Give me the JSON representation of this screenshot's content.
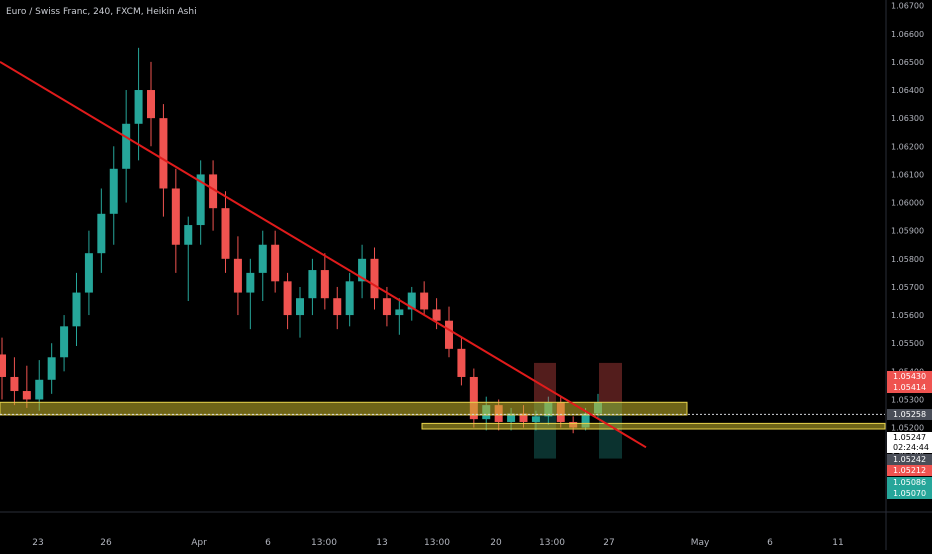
{
  "header": {
    "title": "Euro / Swiss Franc, 240, FXCM, Heikin Ashi"
  },
  "colors": {
    "background": "#000000",
    "up_candle": "#26a69a",
    "down_candle": "#ef5350",
    "trendline": "#e01b1b",
    "zone_fill": "#c8b72b",
    "zone_border": "#e8d44d",
    "axis_text": "#b2b5be"
  },
  "chart_data": {
    "type": "candlestick",
    "title": "Euro / Swiss Franc, 240, FXCM, Heikin Ashi",
    "yaxis": {
      "ticks": [
        "1.06700",
        "1.06600",
        "1.06500",
        "1.06400",
        "1.06300",
        "1.06200",
        "1.06100",
        "1.06000",
        "1.05900",
        "1.05800",
        "1.05700",
        "1.05600",
        "1.05500",
        "1.05400",
        "1.05300",
        "1.05200",
        "1.05100",
        "1.05000"
      ],
      "range": [
        1.049,
        1.0672
      ]
    },
    "xaxis": {
      "ticks": [
        "23",
        "26",
        "Apr",
        "6",
        "13:00",
        "13",
        "13:00",
        "20",
        "13:00",
        "27",
        "May",
        "6",
        "11"
      ]
    },
    "price_labels": [
      {
        "text": "1.05430",
        "kind": "red"
      },
      {
        "text": "1.05414",
        "kind": "red"
      },
      {
        "text": "1.05258",
        "kind": "gray"
      },
      {
        "text": "1.05247",
        "kind": "last"
      },
      {
        "text": "02:24:44",
        "kind": "last"
      },
      {
        "text": "1.05242",
        "kind": "gray"
      },
      {
        "text": "1.05212",
        "kind": "red"
      },
      {
        "text": "1.05086",
        "kind": "green"
      },
      {
        "text": "1.05070",
        "kind": "green"
      }
    ],
    "zones": [
      {
        "name": "resistance",
        "from": 1.05245,
        "to": 1.0529
      },
      {
        "name": "support",
        "from": 1.05195,
        "to": 1.05215
      }
    ],
    "trendline": {
      "start": [
        0,
        1.065
      ],
      "end": [
        148,
        1.0513
      ]
    },
    "candles": [
      {
        "o": 1.0546,
        "h": 1.0552,
        "l": 1.053,
        "c": 1.0538
      },
      {
        "o": 1.0538,
        "h": 1.0545,
        "l": 1.0528,
        "c": 1.0533
      },
      {
        "o": 1.0533,
        "h": 1.0542,
        "l": 1.0527,
        "c": 1.053
      },
      {
        "o": 1.053,
        "h": 1.0544,
        "l": 1.0526,
        "c": 1.0537
      },
      {
        "o": 1.0537,
        "h": 1.055,
        "l": 1.0532,
        "c": 1.0545
      },
      {
        "o": 1.0545,
        "h": 1.056,
        "l": 1.054,
        "c": 1.0556
      },
      {
        "o": 1.0556,
        "h": 1.0575,
        "l": 1.0549,
        "c": 1.0568
      },
      {
        "o": 1.0568,
        "h": 1.059,
        "l": 1.056,
        "c": 1.0582
      },
      {
        "o": 1.0582,
        "h": 1.0605,
        "l": 1.0575,
        "c": 1.0596
      },
      {
        "o": 1.0596,
        "h": 1.062,
        "l": 1.0585,
        "c": 1.0612
      },
      {
        "o": 1.0612,
        "h": 1.064,
        "l": 1.06,
        "c": 1.0628
      },
      {
        "o": 1.0628,
        "h": 1.0655,
        "l": 1.0615,
        "c": 1.064
      },
      {
        "o": 1.064,
        "h": 1.065,
        "l": 1.062,
        "c": 1.063
      },
      {
        "o": 1.063,
        "h": 1.0635,
        "l": 1.0595,
        "c": 1.0605
      },
      {
        "o": 1.0605,
        "h": 1.0612,
        "l": 1.0575,
        "c": 1.0585
      },
      {
        "o": 1.0585,
        "h": 1.0595,
        "l": 1.0565,
        "c": 1.0592
      },
      {
        "o": 1.0592,
        "h": 1.0615,
        "l": 1.0585,
        "c": 1.061
      },
      {
        "o": 1.061,
        "h": 1.0615,
        "l": 1.059,
        "c": 1.0598
      },
      {
        "o": 1.0598,
        "h": 1.0604,
        "l": 1.0575,
        "c": 1.058
      },
      {
        "o": 1.058,
        "h": 1.0588,
        "l": 1.056,
        "c": 1.0568
      },
      {
        "o": 1.0568,
        "h": 1.058,
        "l": 1.0555,
        "c": 1.0575
      },
      {
        "o": 1.0575,
        "h": 1.059,
        "l": 1.0565,
        "c": 1.0585
      },
      {
        "o": 1.0585,
        "h": 1.059,
        "l": 1.0568,
        "c": 1.0572
      },
      {
        "o": 1.0572,
        "h": 1.0575,
        "l": 1.0555,
        "c": 1.056
      },
      {
        "o": 1.056,
        "h": 1.057,
        "l": 1.0552,
        "c": 1.0566
      },
      {
        "o": 1.0566,
        "h": 1.058,
        "l": 1.056,
        "c": 1.0576
      },
      {
        "o": 1.0576,
        "h": 1.0582,
        "l": 1.0562,
        "c": 1.0566
      },
      {
        "o": 1.0566,
        "h": 1.057,
        "l": 1.0555,
        "c": 1.056
      },
      {
        "o": 1.056,
        "h": 1.0575,
        "l": 1.0556,
        "c": 1.0572
      },
      {
        "o": 1.0572,
        "h": 1.0585,
        "l": 1.0566,
        "c": 1.058
      },
      {
        "o": 1.058,
        "h": 1.0584,
        "l": 1.0562,
        "c": 1.0566
      },
      {
        "o": 1.0566,
        "h": 1.057,
        "l": 1.0556,
        "c": 1.056
      },
      {
        "o": 1.056,
        "h": 1.0566,
        "l": 1.0553,
        "c": 1.0562
      },
      {
        "o": 1.0562,
        "h": 1.057,
        "l": 1.0558,
        "c": 1.0568
      },
      {
        "o": 1.0568,
        "h": 1.0572,
        "l": 1.056,
        "c": 1.0562
      },
      {
        "o": 1.0562,
        "h": 1.0566,
        "l": 1.0555,
        "c": 1.0558
      },
      {
        "o": 1.0558,
        "h": 1.0563,
        "l": 1.0545,
        "c": 1.0548
      },
      {
        "o": 1.0548,
        "h": 1.0552,
        "l": 1.0535,
        "c": 1.0538
      },
      {
        "o": 1.0538,
        "h": 1.0541,
        "l": 1.052,
        "c": 1.0523
      },
      {
        "o": 1.0523,
        "h": 1.0531,
        "l": 1.0519,
        "c": 1.0528
      },
      {
        "o": 1.0528,
        "h": 1.053,
        "l": 1.0519,
        "c": 1.0522
      },
      {
        "o": 1.0522,
        "h": 1.0527,
        "l": 1.0519,
        "c": 1.0525
      },
      {
        "o": 1.0525,
        "h": 1.0528,
        "l": 1.052,
        "c": 1.0522
      },
      {
        "o": 1.0522,
        "h": 1.0526,
        "l": 1.0519,
        "c": 1.0524
      },
      {
        "o": 1.0524,
        "h": 1.0531,
        "l": 1.0521,
        "c": 1.0529
      },
      {
        "o": 1.0529,
        "h": 1.0531,
        "l": 1.052,
        "c": 1.0522
      },
      {
        "o": 1.0522,
        "h": 1.0524,
        "l": 1.0518,
        "c": 1.052
      },
      {
        "o": 1.052,
        "h": 1.0527,
        "l": 1.0519,
        "c": 1.0525
      },
      {
        "o": 1.0525,
        "h": 1.0532,
        "l": 1.0523,
        "c": 1.0529
      }
    ]
  }
}
